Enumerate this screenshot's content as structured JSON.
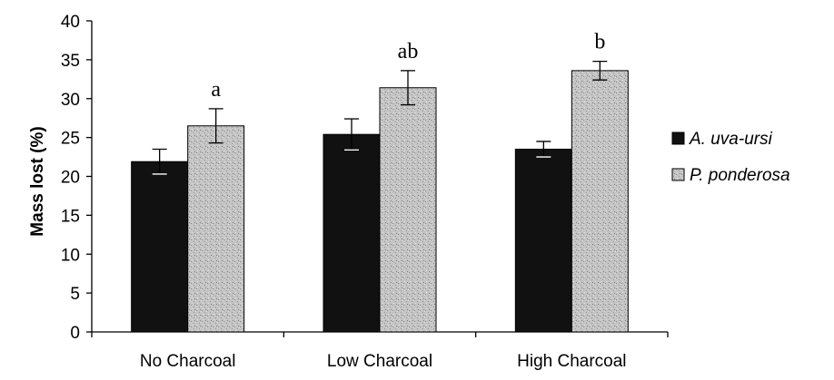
{
  "chart_data": {
    "type": "bar",
    "title": "",
    "xlabel": "",
    "ylabel": "Mass lost (%)",
    "ylim": [
      0,
      40
    ],
    "yticks": [
      0,
      5,
      10,
      15,
      20,
      25,
      30,
      35,
      40
    ],
    "categories": [
      "No Charcoal",
      "Low Charcoal",
      "High Charcoal"
    ],
    "series": [
      {
        "name": "A. uva-ursi",
        "color": "#111111",
        "values": [
          21.9,
          25.4,
          23.5
        ],
        "errors": [
          1.6,
          2.0,
          1.0
        ]
      },
      {
        "name": "P. ponderosa",
        "color": "#bdbdbd",
        "values": [
          26.5,
          31.4,
          33.6
        ],
        "errors": [
          2.2,
          2.2,
          1.2
        ]
      }
    ],
    "significance_labels": [
      "a",
      "ab",
      "b"
    ],
    "grid": false,
    "legend_position": "right"
  }
}
